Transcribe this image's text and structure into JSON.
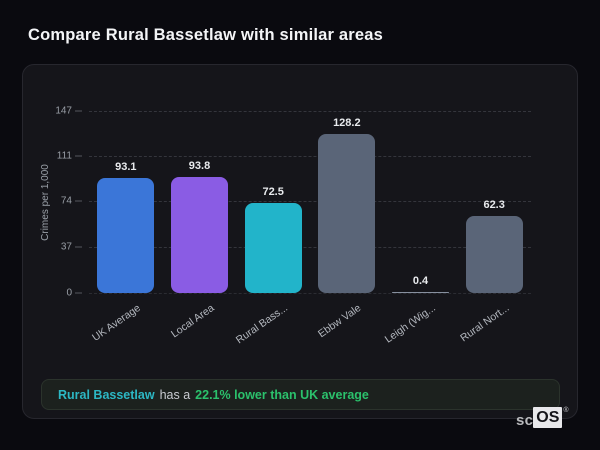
{
  "page": {
    "title": "Compare Rural Bassetlaw with similar areas"
  },
  "chart_data": {
    "type": "bar",
    "categories": [
      "UK Average",
      "Local Area",
      "Rural Bass...",
      "Ebbw Vale",
      "Leigh (Wig...",
      "Rural Nort..."
    ],
    "values": [
      93.1,
      93.8,
      72.5,
      128.2,
      0.4,
      62.3
    ],
    "bar_colors": [
      "#3b76d8",
      "#8a5ce4",
      "#22b4ca",
      "#5a6578",
      "#87909f",
      "#5a6578"
    ],
    "title": "",
    "xlabel": "",
    "ylabel": "Crimes per 1,000",
    "yticks": [
      0,
      37,
      74,
      111,
      147
    ],
    "ylim": [
      0,
      147
    ],
    "grid": "horizontal-dashed",
    "legend_position": "none",
    "value_labels": "above-bars",
    "x_label_rotation_deg": -35
  },
  "note": {
    "area_label": "Rural Bassetlaw",
    "middle_text": "has a",
    "stat_text": "22.1% lower than UK average"
  },
  "logo": {
    "prefix": "sc",
    "suffix": "OS",
    "registered_mark": "®"
  },
  "colors": {
    "page_background": "#0a0a0f",
    "card_background": "#15151a",
    "card_border": "#27272e",
    "gridline": "#34353c",
    "tick_text": "#999ea6",
    "bar_value_text": "#e9ebee",
    "note_area": "#2cb7c4",
    "note_stat": "#2bc16c",
    "note_background": "#1c211e"
  }
}
